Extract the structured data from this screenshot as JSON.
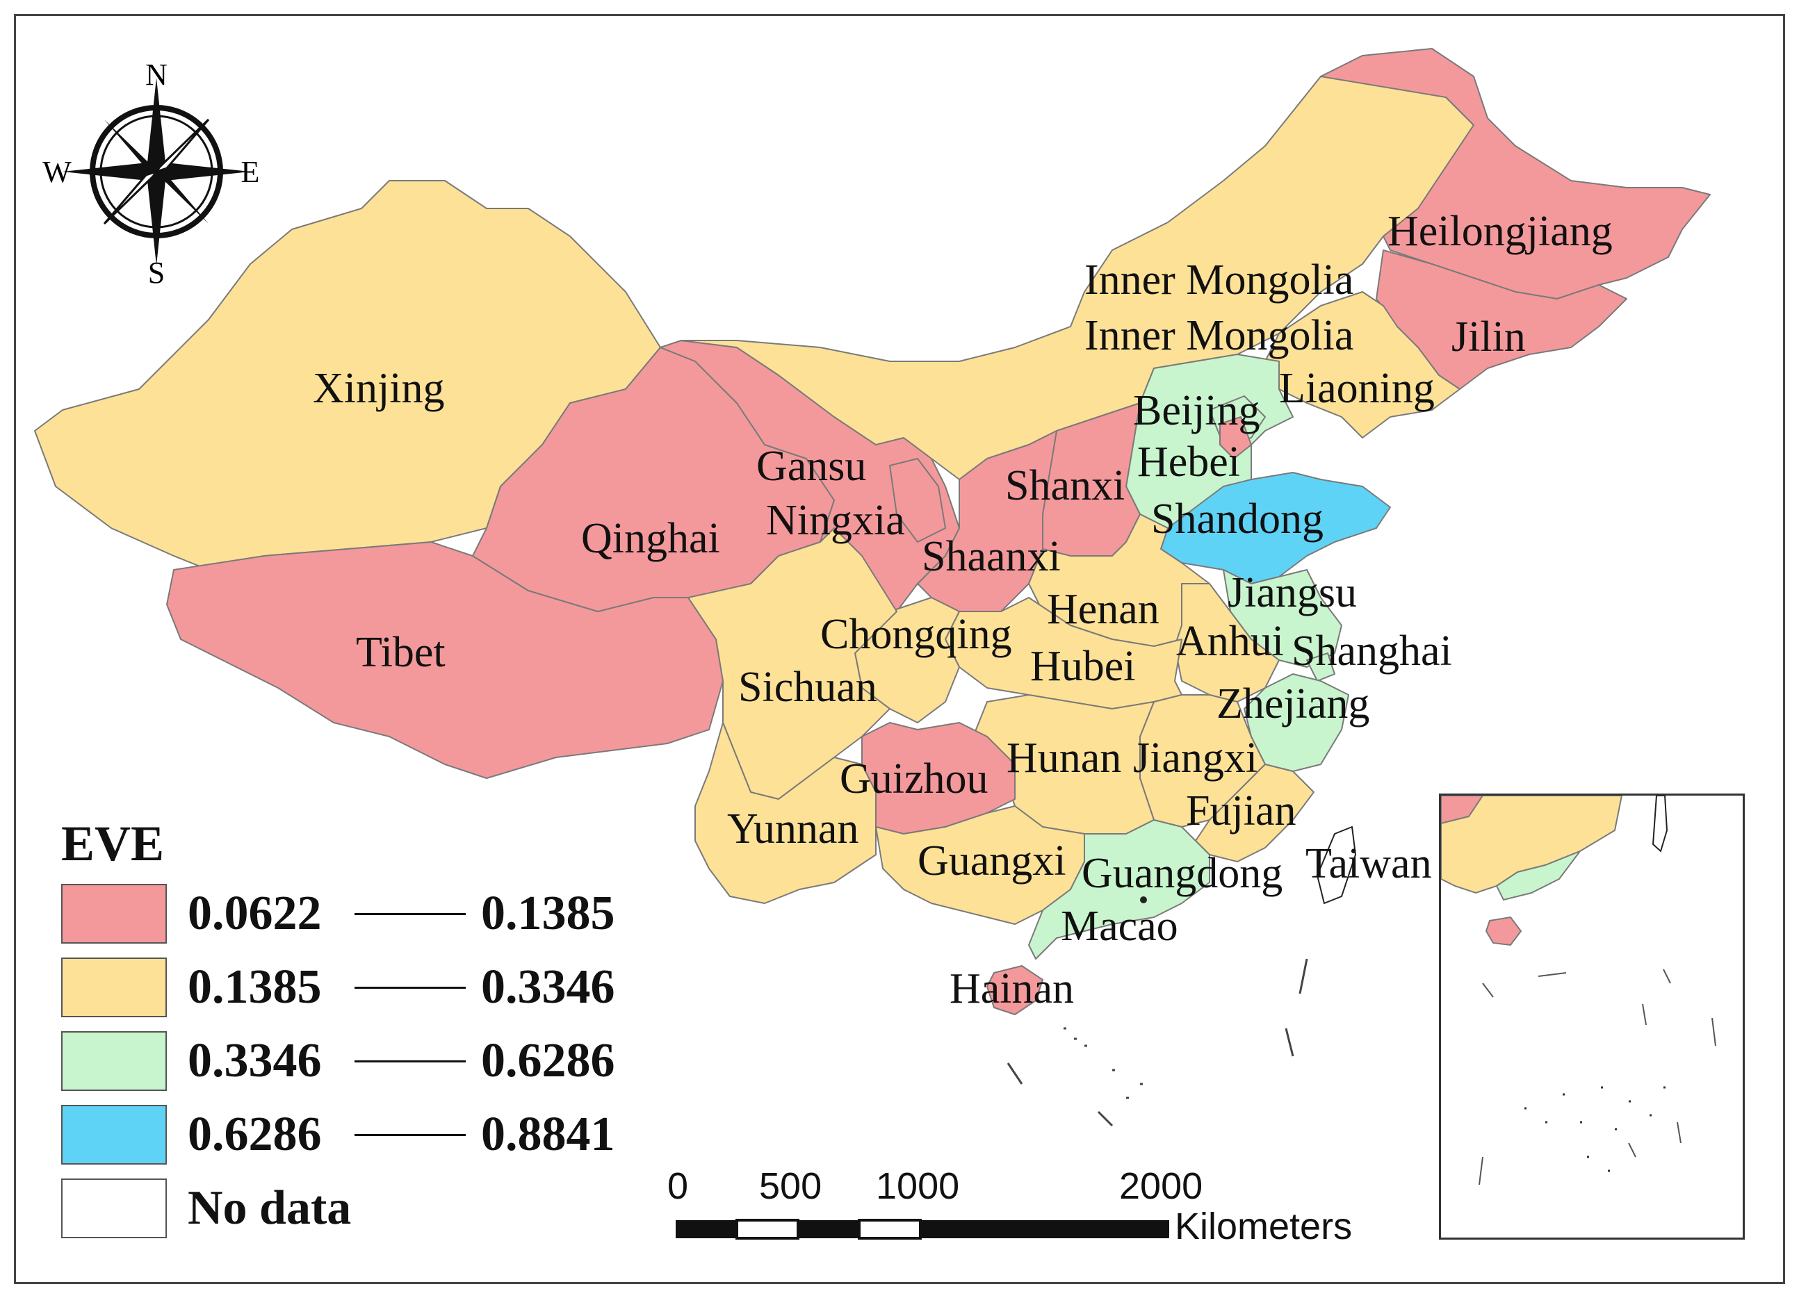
{
  "colors": {
    "class1": "#f4999b",
    "class2": "#fde197",
    "class3": "#c8f5cd",
    "class4": "#5fd3f5",
    "nodata": "#ffffff"
  },
  "provinces": [
    {
      "label": "Xinjing",
      "cls": 2
    },
    {
      "label": "Tibet",
      "cls": 1
    },
    {
      "label": "Qinghai",
      "cls": 1
    },
    {
      "label": "Gansu",
      "cls": 1
    },
    {
      "label": "Ningxia",
      "cls": 1
    },
    {
      "label": "Inner Mongolia",
      "cls": 2
    },
    {
      "label": "Inner Mongolia",
      "cls": 2
    },
    {
      "label": "Heilongjiang",
      "cls": 1
    },
    {
      "label": "Jilin",
      "cls": 1
    },
    {
      "label": "Liaoning",
      "cls": 2
    },
    {
      "label": "Beijing",
      "cls": 3
    },
    {
      "label": "Hebei",
      "cls": 3
    },
    {
      "label": "Shanxi",
      "cls": 1
    },
    {
      "label": "Shandong",
      "cls": 4
    },
    {
      "label": "Shaanxi",
      "cls": 1
    },
    {
      "label": "Henan",
      "cls": 2
    },
    {
      "label": "Jiangsu",
      "cls": 3
    },
    {
      "label": "Anhui",
      "cls": 2
    },
    {
      "label": "Shanghai",
      "cls": 3
    },
    {
      "label": "Chongqing",
      "cls": 2
    },
    {
      "label": "Hubei",
      "cls": 2
    },
    {
      "label": "Sichuan",
      "cls": 2
    },
    {
      "label": "Zhejiang",
      "cls": 3
    },
    {
      "label": "Hunan",
      "cls": 2
    },
    {
      "label": "Jiangxi",
      "cls": 2
    },
    {
      "label": "Guizhou",
      "cls": 1
    },
    {
      "label": "Fujian",
      "cls": 2
    },
    {
      "label": "Yunnan",
      "cls": 2
    },
    {
      "label": "Guangxi",
      "cls": 2
    },
    {
      "label": "Guangdong",
      "cls": 3
    },
    {
      "label": "Taiwan",
      "cls": 0
    },
    {
      "label": "Macao",
      "cls": 0
    },
    {
      "label": "Hainan",
      "cls": 1
    }
  ],
  "legend": {
    "title": "EVE",
    "classes": [
      {
        "from": "0.0622",
        "to": "0.1385",
        "color": "#f4999b"
      },
      {
        "from": "0.1385",
        "to": "0.3346",
        "color": "#fde197"
      },
      {
        "from": "0.3346",
        "to": "0.6286",
        "color": "#c8f5cd"
      },
      {
        "from": "0.6286",
        "to": "0.8841",
        "color": "#5fd3f5"
      }
    ],
    "nodata_label": "No data"
  },
  "compass": {
    "n": "N",
    "s": "S",
    "e": "E",
    "w": "W"
  },
  "scale_bar": {
    "ticks": [
      "0",
      "500",
      "1000",
      "2000"
    ],
    "unit": "Kilometers"
  }
}
